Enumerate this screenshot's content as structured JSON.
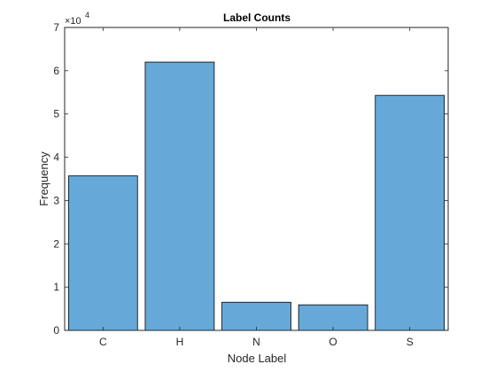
{
  "chart_data": {
    "type": "bar",
    "title": "Label Counts",
    "xlabel": "Node Label",
    "ylabel": "Frequency",
    "categories": [
      "C",
      "H",
      "N",
      "O",
      "S"
    ],
    "values": [
      35700,
      62000,
      6500,
      5900,
      54300
    ],
    "ylim": [
      0,
      70000
    ],
    "yticks": [
      0,
      1,
      2,
      3,
      4,
      5,
      6,
      7
    ],
    "ytick_labels": [
      "0",
      "1",
      "2",
      "3",
      "4",
      "5",
      "6",
      "7"
    ],
    "y_exponent_label": "×10",
    "y_exponent_power": "4",
    "bar_color": "#66a9d8",
    "bar_edge_color": "#000000",
    "grid": false
  }
}
